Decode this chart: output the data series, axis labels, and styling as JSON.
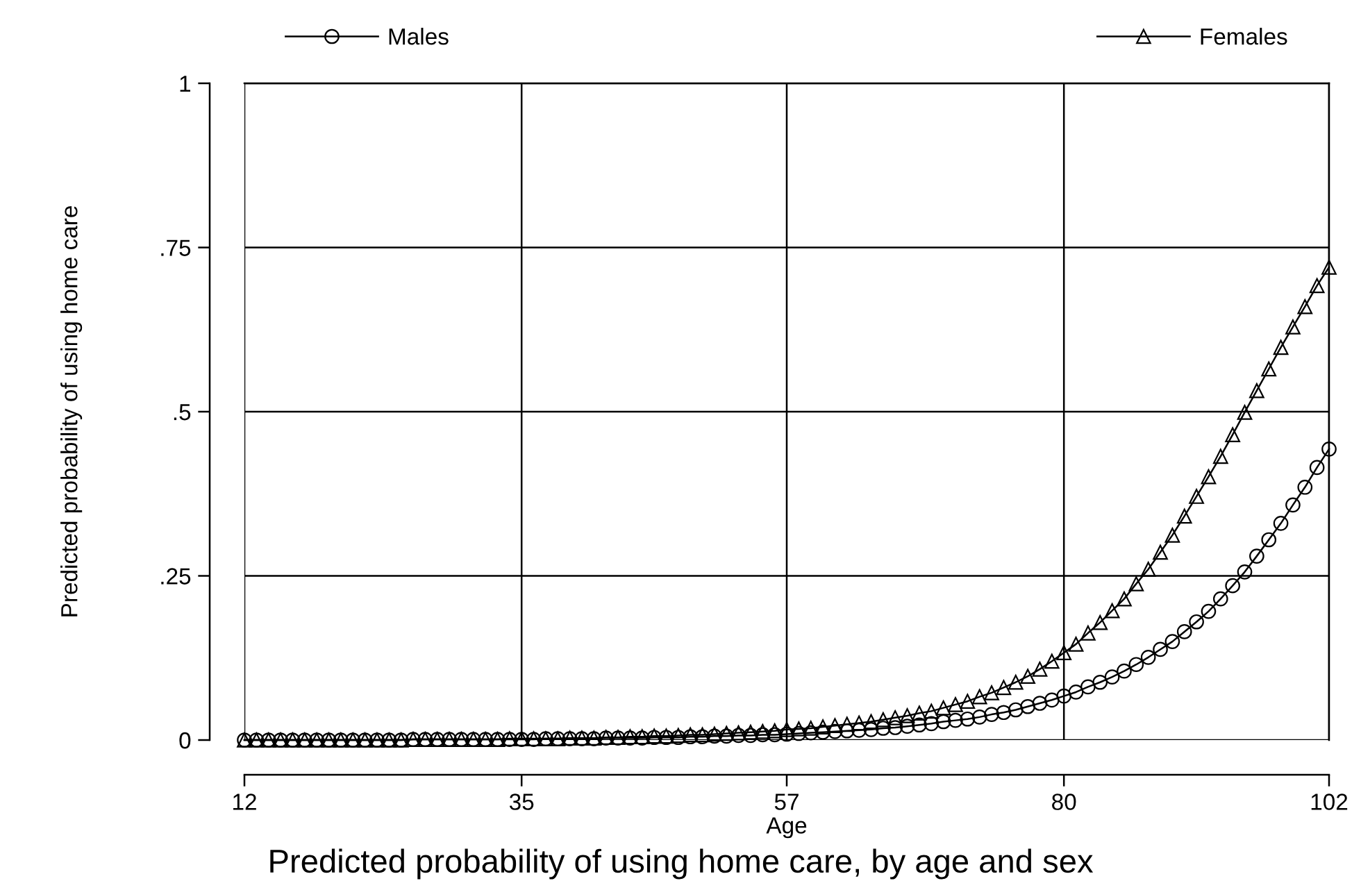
{
  "chart_data": {
    "type": "line",
    "title": "Predicted probability of using home care, by age and sex",
    "xlabel": "Age",
    "ylabel": "Predicted probability of using home care",
    "x": [
      12,
      13,
      14,
      15,
      16,
      17,
      18,
      19,
      20,
      21,
      22,
      23,
      24,
      25,
      26,
      27,
      28,
      29,
      30,
      31,
      32,
      33,
      34,
      35,
      36,
      37,
      38,
      39,
      40,
      41,
      42,
      43,
      44,
      45,
      46,
      47,
      48,
      49,
      50,
      51,
      52,
      53,
      54,
      55,
      56,
      57,
      58,
      59,
      60,
      61,
      62,
      63,
      64,
      65,
      66,
      67,
      68,
      69,
      70,
      71,
      72,
      73,
      74,
      75,
      76,
      77,
      78,
      79,
      80,
      81,
      82,
      83,
      84,
      85,
      86,
      87,
      88,
      89,
      90,
      91,
      92,
      93,
      94,
      95,
      96,
      97,
      98,
      99,
      100,
      101,
      102
    ],
    "series": [
      {
        "name": "Males",
        "color": "#000000",
        "marker": "circle",
        "values": [
          0,
          0,
          0,
          0,
          0,
          0,
          0,
          0,
          0,
          0,
          0,
          0,
          0,
          0,
          0.001,
          0.001,
          0.001,
          0.001,
          0.001,
          0.001,
          0.001,
          0.001,
          0.001,
          0.001,
          0.001,
          0.002,
          0.002,
          0.002,
          0.002,
          0.002,
          0.003,
          0.003,
          0.003,
          0.003,
          0.004,
          0.004,
          0.004,
          0.005,
          0.005,
          0.006,
          0.006,
          0.007,
          0.007,
          0.008,
          0.008,
          0.009,
          0.01,
          0.011,
          0.012,
          0.013,
          0.014,
          0.015,
          0.016,
          0.018,
          0.019,
          0.021,
          0.023,
          0.025,
          0.028,
          0.03,
          0.032,
          0.035,
          0.039,
          0.042,
          0.046,
          0.051,
          0.056,
          0.061,
          0.067,
          0.073,
          0.081,
          0.088,
          0.096,
          0.105,
          0.115,
          0.126,
          0.138,
          0.15,
          0.165,
          0.18,
          0.196,
          0.215,
          0.235,
          0.256,
          0.28,
          0.305,
          0.33,
          0.358,
          0.385,
          0.415,
          0.443
        ]
      },
      {
        "name": "Females",
        "color": "#000000",
        "marker": "triangle",
        "values": [
          0,
          0,
          0,
          0,
          0,
          0,
          0,
          0,
          0,
          0,
          0,
          0,
          0,
          0,
          0.001,
          0.001,
          0.001,
          0.001,
          0.001,
          0.001,
          0.001,
          0.001,
          0.002,
          0.002,
          0.002,
          0.002,
          0.002,
          0.003,
          0.003,
          0.003,
          0.004,
          0.004,
          0.005,
          0.005,
          0.006,
          0.006,
          0.007,
          0.008,
          0.008,
          0.009,
          0.01,
          0.011,
          0.012,
          0.013,
          0.014,
          0.016,
          0.017,
          0.018,
          0.02,
          0.022,
          0.024,
          0.026,
          0.028,
          0.031,
          0.034,
          0.037,
          0.041,
          0.044,
          0.049,
          0.054,
          0.059,
          0.066,
          0.072,
          0.08,
          0.088,
          0.097,
          0.108,
          0.12,
          0.133,
          0.146,
          0.163,
          0.179,
          0.197,
          0.215,
          0.238,
          0.26,
          0.286,
          0.312,
          0.341,
          0.371,
          0.401,
          0.432,
          0.465,
          0.499,
          0.532,
          0.565,
          0.598,
          0.629,
          0.66,
          0.692,
          0.72
        ]
      }
    ],
    "xlim": [
      12,
      102
    ],
    "xticks": [
      12,
      35,
      57,
      80,
      102
    ],
    "ylim": [
      0,
      1
    ],
    "yticks": [
      0,
      {
        "value": 0.25,
        "label": ".25"
      },
      {
        "value": 0.5,
        "label": ".5"
      },
      {
        "value": 0.75,
        "label": ".75"
      },
      1
    ],
    "grid": true,
    "legend": "top",
    "line_style": "solid"
  }
}
